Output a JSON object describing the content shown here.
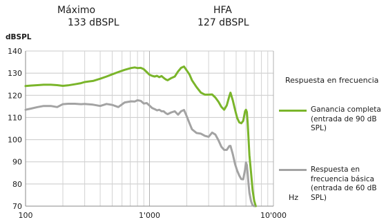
{
  "header": {
    "max_label": "Máximo",
    "max_value": "133 dBSPL",
    "hfa_label": "HFA",
    "hfa_value": "127 dBSPL"
  },
  "chart_data": {
    "type": "line",
    "ylabel": "dBSPL",
    "xlabel": "Hz",
    "xscale": "log",
    "xlim": [
      100,
      10000
    ],
    "ylim": [
      70,
      140
    ],
    "yticks": [
      70,
      80,
      90,
      100,
      110,
      120,
      130,
      140
    ],
    "xticks": [
      {
        "value": 100,
        "label": "100"
      },
      {
        "value": 1000,
        "label": "1'000"
      },
      {
        "value": 10000,
        "label": "10'000"
      }
    ],
    "grid": true,
    "legend_title": "Respuesta en frecuencia",
    "legend_position": "right",
    "series": [
      {
        "name": "Ganancia completa (entrada de 90 dB SPL)",
        "color": "#7ab52a",
        "x": [
          100,
          110,
          125,
          140,
          160,
          180,
          200,
          220,
          250,
          280,
          300,
          350,
          400,
          450,
          500,
          560,
          630,
          710,
          760,
          800,
          850,
          900,
          950,
          1000,
          1050,
          1100,
          1150,
          1200,
          1250,
          1300,
          1350,
          1400,
          1500,
          1600,
          1700,
          1800,
          1900,
          2000,
          2100,
          2200,
          2400,
          2600,
          2800,
          3000,
          3200,
          3400,
          3600,
          3800,
          4000,
          4200,
          4400,
          4500,
          4700,
          4900,
          5100,
          5300,
          5500,
          5700,
          5900,
          6000,
          6100,
          6200,
          6300,
          6400,
          6600,
          6800,
          7000,
          7200
        ],
        "values": [
          124.2,
          124.4,
          124.6,
          124.8,
          124.8,
          124.6,
          124.3,
          124.5,
          125,
          125.5,
          126,
          126.5,
          127.5,
          128.5,
          129.5,
          130.5,
          131.5,
          132.3,
          132.6,
          132.3,
          132.4,
          131.8,
          130.5,
          129.3,
          128.8,
          128.5,
          128.8,
          128.2,
          128.7,
          127.9,
          127.2,
          126.8,
          127.8,
          128.5,
          130.8,
          132.4,
          133,
          131.2,
          129.5,
          126.8,
          123.7,
          121.2,
          120.3,
          120.3,
          120.4,
          119,
          117.1,
          114.8,
          113.5,
          115.5,
          119.5,
          121.2,
          117.8,
          113.5,
          109.8,
          107.8,
          107.4,
          108.5,
          112.8,
          113.5,
          112.5,
          107.5,
          100,
          93,
          85,
          77,
          72.3,
          70
        ]
      },
      {
        "name": "Respuesta en frecuencia básica (entrada de 60 dB SPL)",
        "color": "#a3a3a3",
        "x": [
          100,
          110,
          125,
          140,
          160,
          180,
          200,
          220,
          250,
          280,
          300,
          350,
          400,
          450,
          500,
          560,
          630,
          710,
          760,
          800,
          850,
          900,
          950,
          1000,
          1050,
          1100,
          1150,
          1200,
          1250,
          1300,
          1350,
          1400,
          1500,
          1600,
          1700,
          1800,
          1900,
          2000,
          2100,
          2200,
          2400,
          2600,
          2800,
          3000,
          3200,
          3400,
          3600,
          3800,
          4000,
          4200,
          4400,
          4500,
          4700,
          4900,
          5100,
          5300,
          5500,
          5700,
          5900,
          6000,
          6100,
          6200,
          6300,
          6400,
          6600,
          6800,
          7000
        ],
        "values": [
          113.5,
          114,
          114.7,
          115.2,
          115.2,
          114.7,
          116,
          116.2,
          116.2,
          116,
          116.1,
          115.8,
          115.2,
          116.1,
          115.7,
          114.7,
          116.8,
          117.3,
          117.2,
          117.8,
          117.5,
          116.3,
          116.5,
          115.4,
          114.3,
          113.8,
          113.2,
          113.5,
          112.8,
          112.8,
          112,
          111.5,
          112.3,
          112.8,
          111.3,
          112.8,
          113.4,
          110.5,
          107.5,
          104.7,
          103,
          102.7,
          101.7,
          101.3,
          103.2,
          102.3,
          99.7,
          96.8,
          95.4,
          95.4,
          97.1,
          97.2,
          93.5,
          89,
          86,
          83.8,
          82.2,
          82.1,
          86.5,
          89.7,
          88.5,
          84.5,
          79.8,
          76,
          72.2,
          70.3,
          70
        ]
      }
    ]
  }
}
